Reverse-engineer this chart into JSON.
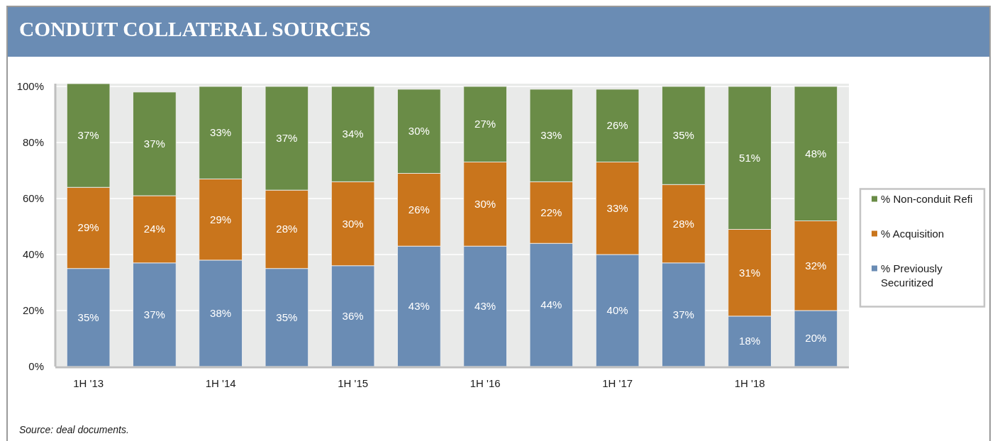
{
  "chart_data": {
    "type": "bar",
    "title": "CONDUIT COLLATERAL SOURCES",
    "categories": [
      "1H '13",
      null,
      "1H '14",
      null,
      "1H '15",
      null,
      "1H '16",
      null,
      "1H '17",
      null,
      "1H '18",
      null
    ],
    "series": [
      {
        "name": "% Previously Securitized",
        "color": "#6a8cb4",
        "values": [
          35,
          37,
          38,
          35,
          36,
          43,
          43,
          44,
          40,
          37,
          18,
          20
        ],
        "value_labels": [
          "35%",
          "37%",
          "38%",
          "35%",
          "36%",
          "43%",
          "43%",
          "44%",
          "40%",
          "37%",
          "18%",
          "20%"
        ]
      },
      {
        "name": "% Acquisition",
        "color": "#c9751c",
        "values": [
          29,
          24,
          29,
          28,
          30,
          26,
          30,
          22,
          33,
          28,
          31,
          32
        ],
        "value_labels": [
          "29%",
          "24%",
          "29%",
          "28%",
          "30%",
          "26%",
          "30%",
          "22%",
          "33%",
          "28%",
          "31%",
          "32%"
        ]
      },
      {
        "name": "% Non-conduit Refi",
        "color": "#6a8c47",
        "values": [
          37,
          37,
          33,
          37,
          34,
          30,
          27,
          33,
          26,
          35,
          51,
          48
        ],
        "value_labels": [
          "37%",
          "37%",
          "33%",
          "37%",
          "34%",
          "30%",
          "27%",
          "33%",
          "26%",
          "35%",
          "51%",
          "48%"
        ]
      }
    ],
    "stacked": true,
    "ylim": [
      0,
      101
    ],
    "yticks": [
      {
        "value": 0,
        "label": "0%"
      },
      {
        "value": 20,
        "label": "20%"
      },
      {
        "value": 40,
        "label": "40%"
      },
      {
        "value": 60,
        "label": "60%"
      },
      {
        "value": 80,
        "label": "80%"
      },
      {
        "value": 100,
        "label": "100%"
      }
    ],
    "grid": "y",
    "legend": "right",
    "annotations": [
      "Source: deal documents."
    ]
  }
}
